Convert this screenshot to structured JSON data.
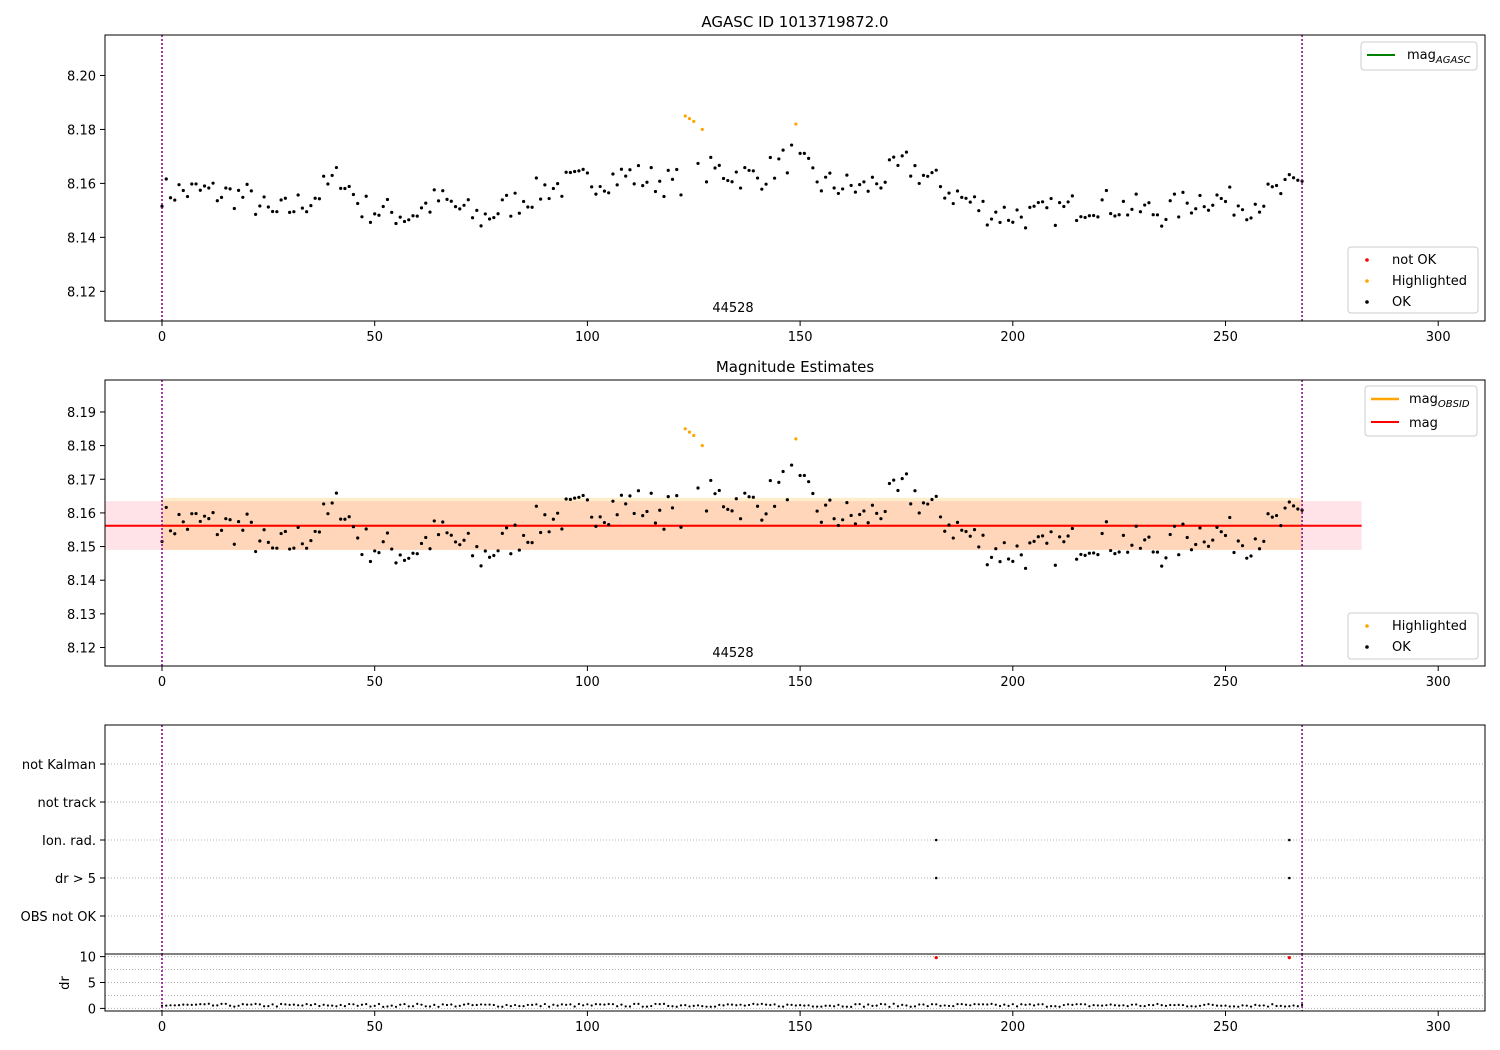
{
  "chart_data": [
    {
      "type": "scatter",
      "title": "AGASC ID 1013719872.0",
      "xlim": [
        -13.4,
        311
      ],
      "ylim": [
        8.109,
        8.215
      ],
      "xticks": [
        0,
        50,
        100,
        150,
        200,
        250,
        300
      ],
      "yticks": [
        8.12,
        8.14,
        8.16,
        8.18,
        8.2
      ],
      "ytick_labels": [
        "8.12",
        "8.14",
        "8.16",
        "8.18",
        "8.20"
      ],
      "vlines": [
        0,
        268
      ],
      "annotation": {
        "text": "44528",
        "x": 134,
        "y": 8.1125
      },
      "line_legend": [
        {
          "name": "mag",
          "sub": "AGASC",
          "color": "#008000"
        }
      ],
      "point_legend": [
        {
          "name": "not OK",
          "color": "#ff0000"
        },
        {
          "name": "Highlighted",
          "color": "#ffa500"
        },
        {
          "name": "OK",
          "color": "#000000"
        }
      ],
      "series": [
        {
          "name": "OK",
          "color": "#000000",
          "base": 8.155,
          "noise": 0.0055,
          "drift": [
            [
              0,
              8.157
            ],
            [
              10,
              8.157
            ],
            [
              20,
              8.155
            ],
            [
              26,
              8.148
            ],
            [
              35,
              8.154
            ],
            [
              42,
              8.163
            ],
            [
              47,
              8.151
            ],
            [
              58,
              8.148
            ],
            [
              65,
              8.154
            ],
            [
              75,
              8.147
            ],
            [
              90,
              8.158
            ],
            [
              100,
              8.161
            ],
            [
              110,
              8.163
            ],
            [
              120,
              8.16
            ],
            [
              130,
              8.165
            ],
            [
              140,
              8.162
            ],
            [
              148,
              8.17
            ],
            [
              155,
              8.16
            ],
            [
              165,
              8.158
            ],
            [
              175,
              8.167
            ],
            [
              185,
              8.157
            ],
            [
              195,
              8.149
            ],
            [
              205,
              8.148
            ],
            [
              220,
              8.153
            ],
            [
              235,
              8.149
            ],
            [
              245,
              8.155
            ],
            [
              255,
              8.152
            ],
            [
              268,
              8.16
            ]
          ],
          "dense": [
            0,
            268
          ],
          "skip": [
            123,
            124,
            125,
            127,
            149
          ]
        },
        {
          "name": "Highlighted",
          "color": "#ffa500",
          "points": [
            [
              123,
              8.185
            ],
            [
              124,
              8.184
            ],
            [
              125,
              8.183
            ],
            [
              127,
              8.18
            ],
            [
              149,
              8.182
            ]
          ]
        }
      ]
    },
    {
      "type": "scatter",
      "title": "Magnitude Estimates",
      "xlim": [
        -13.4,
        311
      ],
      "ylim": [
        8.1145,
        8.1995
      ],
      "xticks": [
        0,
        50,
        100,
        150,
        200,
        250,
        300
      ],
      "yticks": [
        8.12,
        8.13,
        8.14,
        8.15,
        8.16,
        8.17,
        8.18,
        8.19
      ],
      "ytick_labels": [
        "8.12",
        "8.13",
        "8.14",
        "8.15",
        "8.16",
        "8.17",
        "8.18",
        "8.19"
      ],
      "vlines": [
        0,
        268
      ],
      "annotation": {
        "text": "44528",
        "x": 134,
        "y": 8.1155
      },
      "bands": [
        {
          "x": [
            -13.4,
            282
          ],
          "y": [
            8.149,
            8.1635
          ],
          "color": "#ffc0cb",
          "alpha": 0.45
        },
        {
          "x": [
            0,
            268
          ],
          "y": [
            8.149,
            8.1645
          ],
          "color": "#ffa500",
          "alpha": 0.2
        }
      ],
      "hlines": [
        {
          "y": 8.1562,
          "x": [
            0,
            268
          ],
          "color": "#ffa500"
        },
        {
          "y": 8.1562,
          "x": [
            -13.4,
            282
          ],
          "color": "#ff0000"
        }
      ],
      "line_legend": [
        {
          "name": "mag",
          "sub": "OBSID",
          "color": "#ffa500"
        },
        {
          "name": "mag",
          "sub": "",
          "color": "#ff0000"
        }
      ],
      "point_legend": [
        {
          "name": "Highlighted",
          "color": "#ffa500"
        },
        {
          "name": "OK",
          "color": "#000000"
        }
      ],
      "series": [
        {
          "name": "OK",
          "color": "#000000",
          "same_as_panel": 0
        },
        {
          "name": "Highlighted",
          "color": "#ffa500",
          "points": [
            [
              123,
              8.185
            ],
            [
              124,
              8.184
            ],
            [
              125,
              8.183
            ],
            [
              127,
              8.18
            ],
            [
              149,
              8.182
            ]
          ]
        }
      ]
    },
    {
      "type": "scatter",
      "title": "",
      "xlim": [
        -13.4,
        311
      ],
      "categories": [
        "not Kalman",
        "not track",
        "Ion. rad.",
        "dr > 5",
        "OBS not OK"
      ],
      "vlines": [
        0,
        268
      ],
      "flag_points": {
        "Ion. rad.": [
          182,
          265
        ],
        "dr > 5": [
          182,
          265
        ]
      }
    },
    {
      "type": "scatter",
      "title": "",
      "ylabel": "dr",
      "xlim": [
        -13.4,
        311
      ],
      "ylim": [
        -0.5,
        10.5
      ],
      "xticks": [
        0,
        50,
        100,
        150,
        200,
        250,
        300
      ],
      "yticks": [
        0,
        5,
        10
      ],
      "vlines": [
        0,
        268
      ],
      "series": [
        {
          "name": "dr",
          "color": "#000000",
          "range": [
            0,
            268
          ],
          "values_low": 0.3,
          "values_high": 0.9
        },
        {
          "name": "dr large",
          "color": "#ff0000",
          "points": [
            [
              182,
              9.8
            ],
            [
              265,
              9.8
            ]
          ]
        }
      ]
    }
  ]
}
